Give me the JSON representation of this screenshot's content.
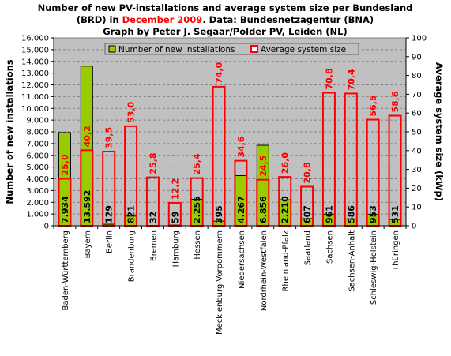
{
  "chart_data": {
    "type": "bar",
    "title": {
      "line1": "Number of new PV-installations and average system size per Bundesland",
      "line2_prefix": "(BRD) in ",
      "line2_highlight": "December 2009",
      "line2_suffix": ". Data: Bundesnetzagentur (BNA)",
      "line3": "Graph by Peter J. Segaar/Polder PV, Leiden (NL)"
    },
    "ylabel_left": "Number of new installations",
    "ylabel_right": "Average system size (kWp)",
    "ylim_left": [
      0,
      16000
    ],
    "ylim_right": [
      0,
      100
    ],
    "left_ticks": [
      "0",
      "1.000",
      "2.000",
      "3.000",
      "4.000",
      "5.000",
      "6.000",
      "7.000",
      "8.000",
      "9.000",
      "10.000",
      "11.000",
      "12.000",
      "13.000",
      "14.000",
      "15.000",
      "16.000"
    ],
    "right_ticks": [
      "0",
      "10",
      "20",
      "30",
      "40",
      "50",
      "60",
      "70",
      "80",
      "90",
      "100"
    ],
    "grid": true,
    "legend_position": "top",
    "categories": [
      "Baden-Württemberg",
      "Bayern",
      "Berlin",
      "Brandenburg",
      "Bremen",
      "Hamburg",
      "Hessen",
      "Mecklenburg-Vorpommern",
      "Niedersachsen",
      "Nordrhein-Westfalen",
      "Rheinland-Pfalz",
      "Saarland",
      "Sachsen",
      "Sachsen-Anhalt",
      "Schleswig-Holstein",
      "Thüringen"
    ],
    "series": [
      {
        "name": "Number of new installations",
        "axis": "left",
        "color": "#99cc00",
        "values": [
          7934,
          13592,
          129,
          821,
          32,
          59,
          2255,
          395,
          4267,
          6856,
          2210,
          607,
          961,
          586,
          953,
          531
        ],
        "labels": [
          "7.934",
          "13.592",
          "129",
          "821",
          "32",
          "59",
          "2.255",
          "395",
          "4.267",
          "6.856",
          "2.210",
          "607",
          "961",
          "586",
          "953",
          "531"
        ]
      },
      {
        "name": "Average system size",
        "axis": "right",
        "color": "#ff0000",
        "values": [
          25.0,
          40.2,
          39.5,
          53.0,
          25.8,
          12.2,
          25.4,
          74.0,
          34.6,
          24.5,
          26.0,
          20.8,
          70.8,
          70.4,
          56.5,
          58.6
        ],
        "labels": [
          "25,0",
          "40,2",
          "39,5",
          "53,0",
          "25,8",
          "12,2",
          "25,4",
          "74,0",
          "34,6",
          "24,5",
          "26,0",
          "20,8",
          "70,8",
          "70,4",
          "56,5",
          "58,6"
        ]
      }
    ],
    "colors": {
      "plot_background": "#c0c0c0",
      "title_text": "#000000",
      "highlight_text": "#ff0000",
      "size_label": "#ff0000",
      "count_label": "#000000"
    }
  }
}
